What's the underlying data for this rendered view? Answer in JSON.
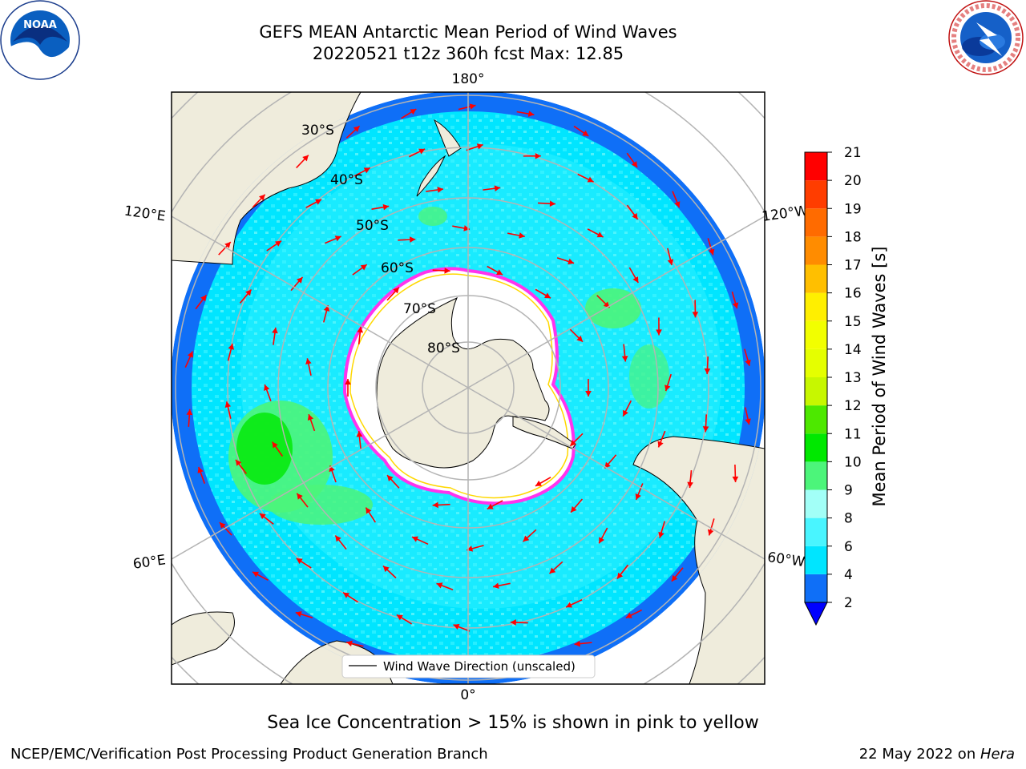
{
  "header": {
    "title_line1": "GEFS MEAN Antarctic Mean Period of Wind Waves",
    "title_line2": "20220521 t12z 360h fcst   Max: 12.85"
  },
  "logos": {
    "noaa_text": "NOAA",
    "nws_ring_text": "NATIONAL WEATHER SERVICE"
  },
  "map": {
    "projection": "south-polar stereographic",
    "longitude_labels": [
      "180°",
      "120°E",
      "120°W",
      "60°E",
      "60°W",
      "0°"
    ],
    "latitude_labels": [
      "30°S",
      "40°S",
      "50°S",
      "60°S",
      "70°S",
      "80°S"
    ],
    "legend_label": "Wind Wave Direction (unscaled)",
    "colors": {
      "land": "#efecdc",
      "sea_ice": "#ffffff",
      "ice_edge": "#ff33ee",
      "ice_edge_inner": "#ffd800",
      "arrow": "#ff0000",
      "gridline": "#b4b4b4"
    }
  },
  "colorbar": {
    "title": "Mean Period of Wind Waves [s]",
    "tick_labels": [
      "2",
      "4",
      "6",
      "8",
      "9",
      "10",
      "11",
      "12",
      "13",
      "14",
      "15",
      "16",
      "17",
      "18",
      "19",
      "20",
      "21"
    ],
    "bins": [
      {
        "from": 2,
        "to": 4,
        "color": "#0f6ff7"
      },
      {
        "from": 4,
        "to": 6,
        "color": "#00e5ff"
      },
      {
        "from": 6,
        "to": 8,
        "color": "#49f5ff"
      },
      {
        "from": 8,
        "to": 9,
        "color": "#a2fff7"
      },
      {
        "from": 9,
        "to": 10,
        "color": "#4cf57a"
      },
      {
        "from": 10,
        "to": 11,
        "color": "#00e800"
      },
      {
        "from": 11,
        "to": 12,
        "color": "#4de800"
      },
      {
        "from": 12,
        "to": 13,
        "color": "#c7f700"
      },
      {
        "from": 13,
        "to": 14,
        "color": "#e5ff00"
      },
      {
        "from": 14,
        "to": 15,
        "color": "#f2ff00"
      },
      {
        "from": 15,
        "to": 16,
        "color": "#ffef00"
      },
      {
        "from": 16,
        "to": 17,
        "color": "#ffbf00"
      },
      {
        "from": 17,
        "to": 18,
        "color": "#ff8c00"
      },
      {
        "from": 18,
        "to": 19,
        "color": "#ff6b00"
      },
      {
        "from": 19,
        "to": 20,
        "color": "#ff3d00"
      },
      {
        "from": 20,
        "to": 21,
        "color": "#ff0000"
      }
    ],
    "under_color": "#0000ff"
  },
  "footer": {
    "ice_note": "Sea Ice Concentration > 15% is shown in pink to yellow",
    "left": "NCEP/EMC/Verification Post Processing Product Generation Branch",
    "right_prefix": "22 May 2022 on ",
    "right_host": "Hera"
  }
}
